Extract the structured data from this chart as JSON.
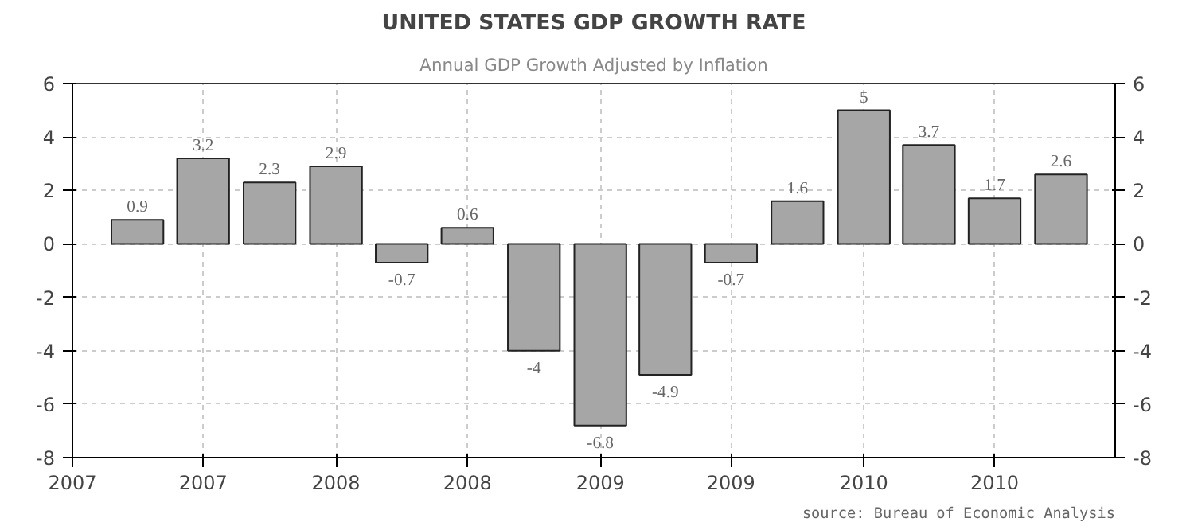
{
  "chart_data": {
    "type": "bar",
    "title": "UNITED STATES GDP GROWTH RATE",
    "subtitle": "Annual GDP Growth Adjusted by Inflation",
    "x": [
      "2007-04",
      "2007-07",
      "2007-10",
      "2008-01",
      "2008-04",
      "2008-07",
      "2008-10",
      "2009-01",
      "2009-04",
      "2009-07",
      "2009-10",
      "2010-01",
      "2010-04",
      "2010-07",
      "2010-10"
    ],
    "values": [
      0.9,
      3.2,
      2.3,
      2.9,
      -0.7,
      0.6,
      -4,
      -6.8,
      -4.9,
      -0.7,
      1.6,
      5,
      3.7,
      1.7,
      2.6
    ],
    "color": "#a6a6a6",
    "data_labels": true,
    "xlim": [
      "2007-01",
      "2010-12-15"
    ],
    "xticks": [
      {
        "value": "2007-01",
        "label": "2007"
      },
      {
        "value": "2007-07",
        "label": "2007"
      },
      {
        "value": "2008-01",
        "label": "2008"
      },
      {
        "value": "2008-07",
        "label": "2008"
      },
      {
        "value": "2009-01",
        "label": "2009"
      },
      {
        "value": "2009-07",
        "label": "2009"
      },
      {
        "value": "2010-01",
        "label": "2010"
      },
      {
        "value": "2010-07",
        "label": "2010"
      }
    ],
    "ylim": [
      -8,
      6
    ],
    "yticks": [
      -8,
      -6,
      -4,
      -2,
      0,
      2,
      4,
      6
    ],
    "y2lim": [
      -8,
      6
    ],
    "y2ticks": [
      -8,
      -6,
      -4,
      -2,
      0,
      2,
      4,
      6
    ],
    "grid": true,
    "annotations": [
      "source: Bureau of Economic Analysis"
    ]
  }
}
